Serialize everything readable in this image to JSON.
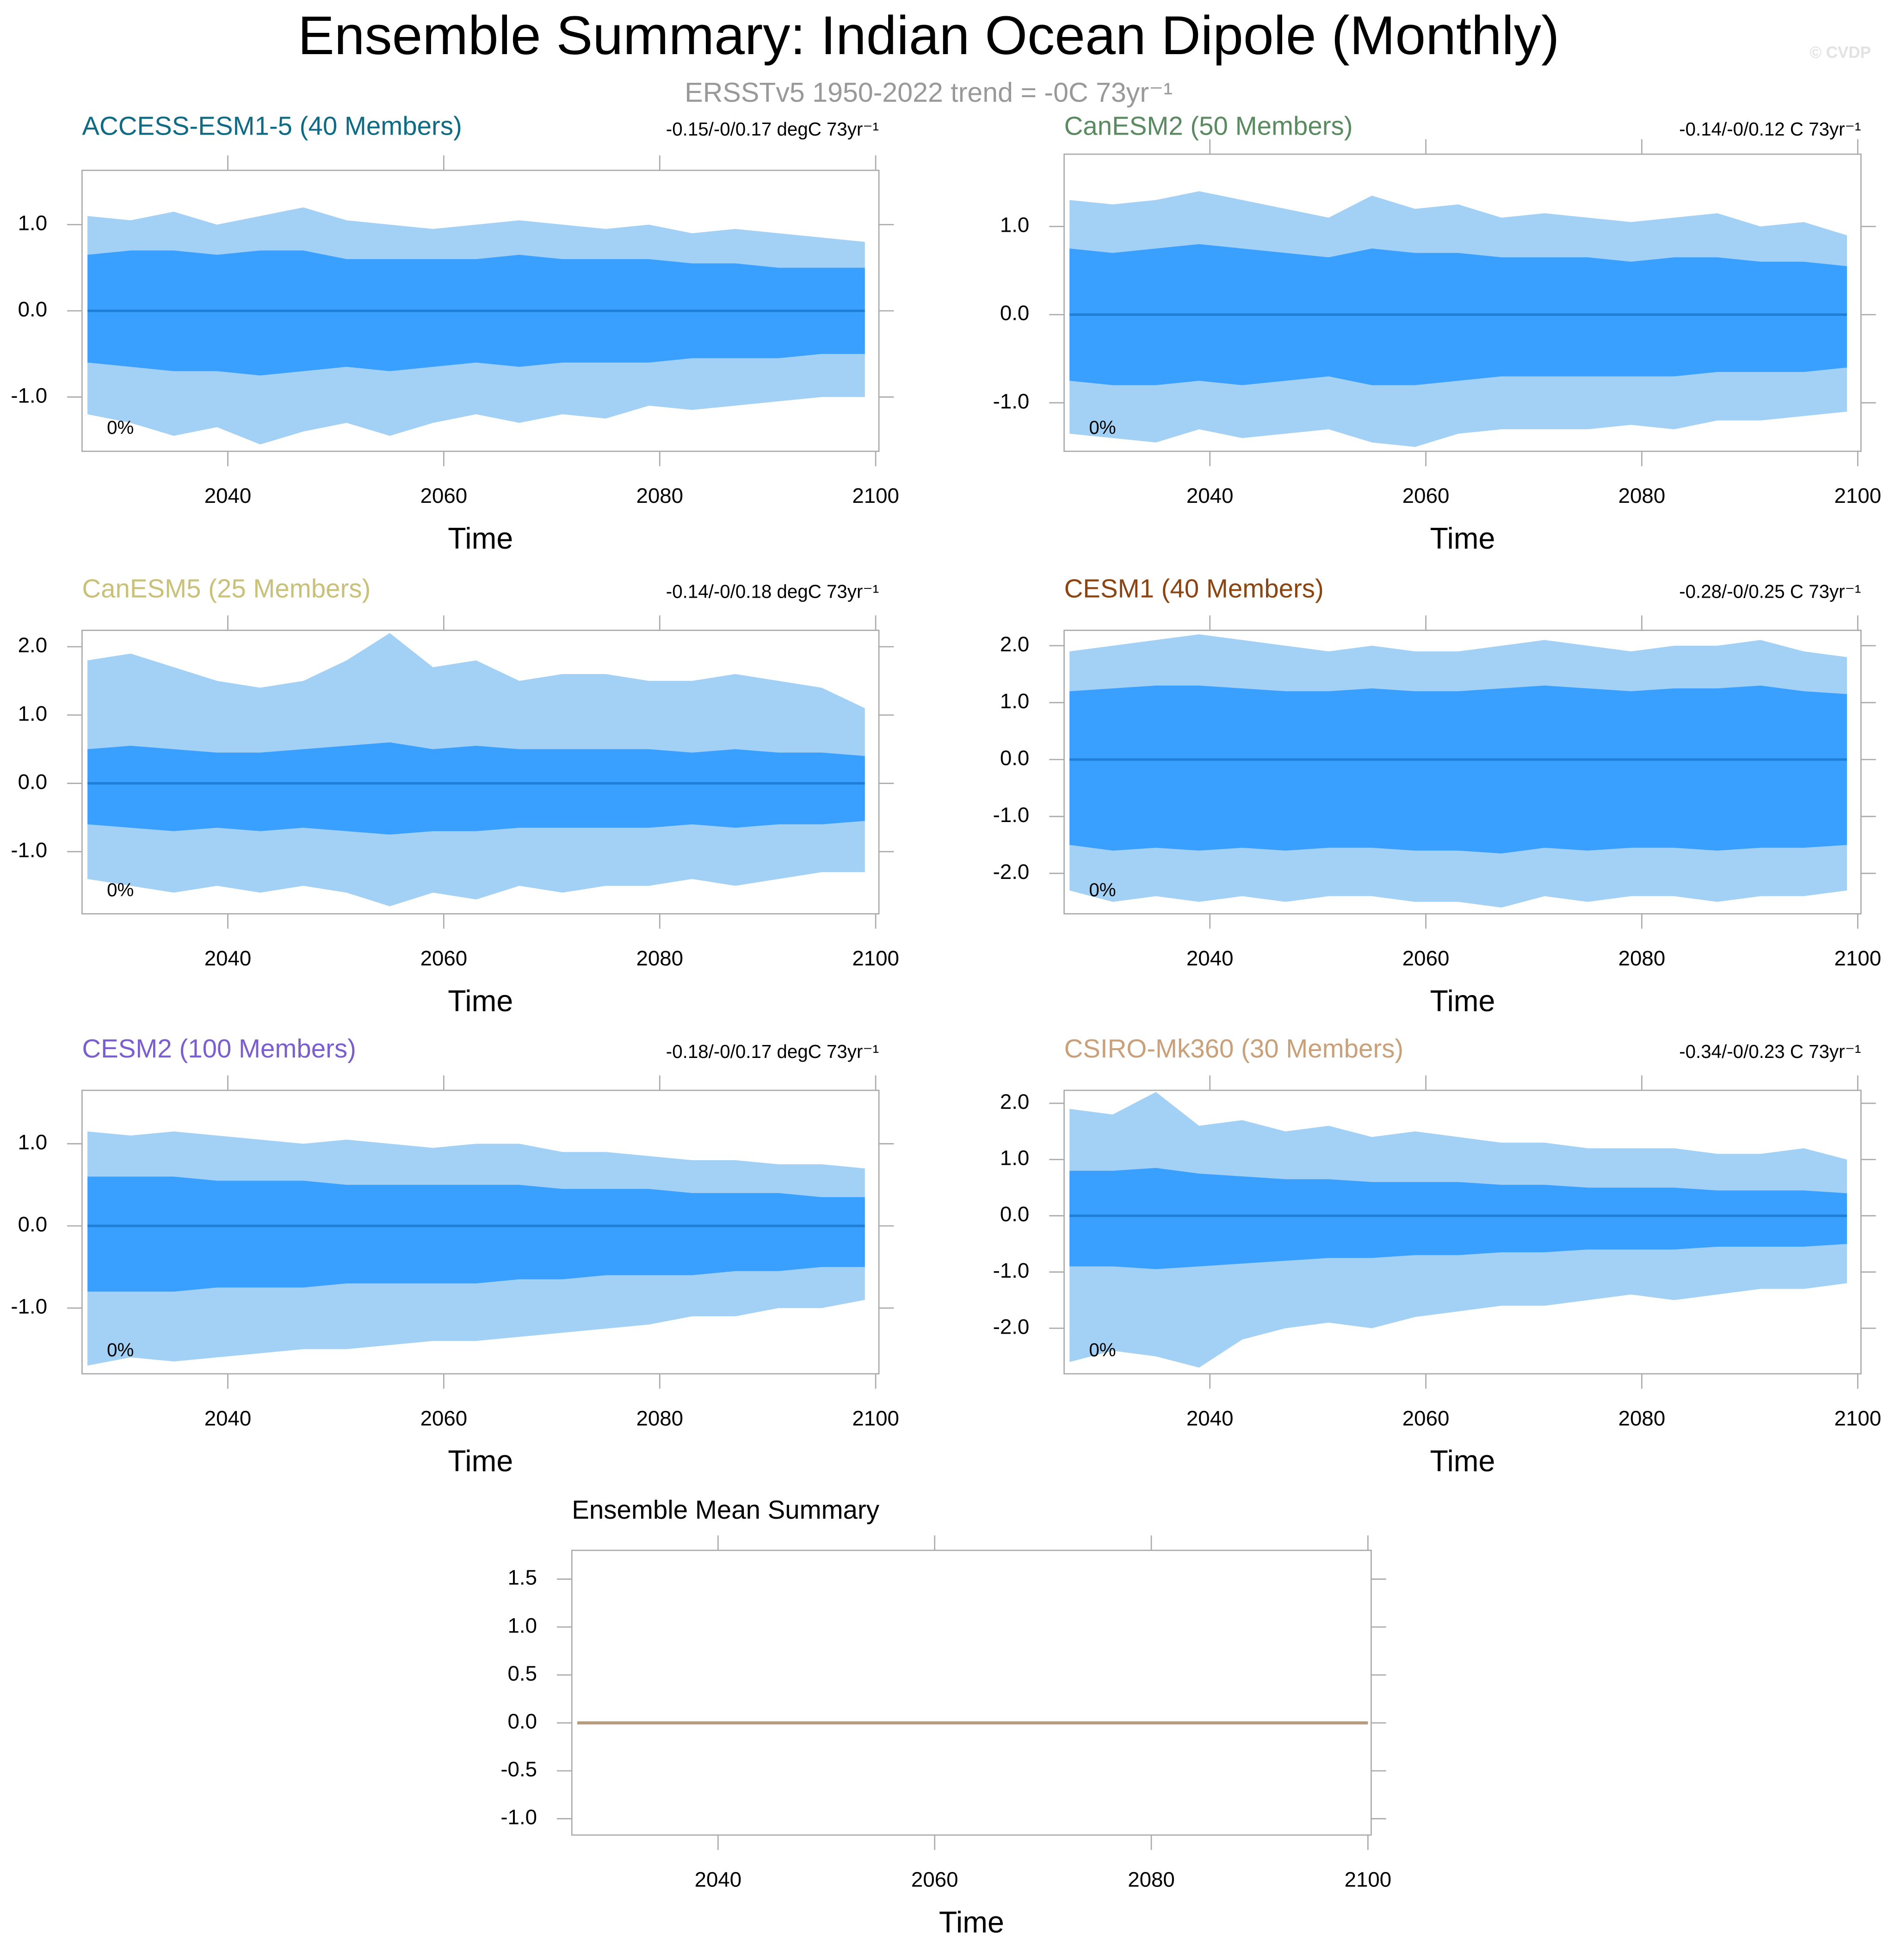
{
  "header": {
    "title": "Ensemble Summary: Indian Ocean Dipole (Monthly)",
    "subtitle": "ERSSTv5 1950-2022 trend = -0C 73yr⁻¹",
    "credit": "© CVDP"
  },
  "chart_data": [
    {
      "type": "area",
      "title": "ACCESS-ESM1-5 (40 Members)",
      "title_color": "#0f6b84",
      "subtitle": "-0.15/-0/0.17 degC 73yr⁻¹",
      "annotation": "0%",
      "xlabel": "Time",
      "x": [
        2027,
        2031,
        2035,
        2039,
        2043,
        2047,
        2051,
        2055,
        2059,
        2063,
        2067,
        2071,
        2075,
        2079,
        2083,
        2087,
        2091,
        2095,
        2099
      ],
      "series": [
        {
          "color": "#a3d0f5",
          "values": [
            1.1,
            1.05,
            1.15,
            1.0,
            1.1,
            1.2,
            1.05,
            1.0,
            0.95,
            1.0,
            1.05,
            1.0,
            0.95,
            1.0,
            0.9,
            0.95,
            0.9,
            0.85,
            0.8
          ]
        },
        {
          "color": "#a3d0f5",
          "values": [
            -1.2,
            -1.3,
            -1.45,
            -1.35,
            -1.55,
            -1.4,
            -1.3,
            -1.45,
            -1.3,
            -1.2,
            -1.3,
            -1.2,
            -1.25,
            -1.1,
            -1.15,
            -1.1,
            -1.05,
            -1.0,
            -1.0
          ]
        },
        {
          "color": "#3aa0ff",
          "values": [
            0.65,
            0.7,
            0.7,
            0.65,
            0.7,
            0.7,
            0.6,
            0.6,
            0.6,
            0.6,
            0.65,
            0.6,
            0.6,
            0.6,
            0.55,
            0.55,
            0.5,
            0.5,
            0.5
          ]
        },
        {
          "color": "#3aa0ff",
          "values": [
            -0.6,
            -0.65,
            -0.7,
            -0.7,
            -0.75,
            -0.7,
            -0.65,
            -0.7,
            -0.65,
            -0.6,
            -0.65,
            -0.6,
            -0.6,
            -0.6,
            -0.55,
            -0.55,
            -0.55,
            -0.5,
            -0.5
          ]
        },
        {
          "color": "#1f7fd6",
          "line": true,
          "values": [
            0,
            0,
            0,
            0,
            0,
            0,
            0,
            0,
            0,
            0,
            0,
            0,
            0,
            0,
            0,
            0,
            0,
            0,
            0
          ]
        }
      ],
      "xlim": [
        2026.5,
        2100.3
      ],
      "xticks": [
        2040,
        2060,
        2080,
        2100
      ],
      "ylim": [
        -1.63,
        1.63
      ],
      "yticks": [
        {
          "value": -1,
          "label": "-1.0"
        },
        {
          "value": 0,
          "label": "0.0"
        },
        {
          "value": 1,
          "label": "1.0"
        }
      ]
    },
    {
      "type": "area",
      "title": "CanESM2 (50 Members)",
      "title_color": "#5a8a60",
      "subtitle": "-0.14/-0/0.12 C 73yr⁻¹",
      "annotation": "0%",
      "xlabel": "Time",
      "x": [
        2027,
        2031,
        2035,
        2039,
        2043,
        2047,
        2051,
        2055,
        2059,
        2063,
        2067,
        2071,
        2075,
        2079,
        2083,
        2087,
        2091,
        2095,
        2099
      ],
      "series": [
        {
          "color": "#a3d0f5",
          "values": [
            1.3,
            1.25,
            1.3,
            1.4,
            1.3,
            1.2,
            1.1,
            1.35,
            1.2,
            1.25,
            1.1,
            1.15,
            1.1,
            1.05,
            1.1,
            1.15,
            1.0,
            1.05,
            0.9
          ]
        },
        {
          "color": "#a3d0f5",
          "values": [
            -1.35,
            -1.4,
            -1.45,
            -1.3,
            -1.4,
            -1.35,
            -1.3,
            -1.45,
            -1.5,
            -1.35,
            -1.3,
            -1.3,
            -1.3,
            -1.25,
            -1.3,
            -1.2,
            -1.2,
            -1.15,
            -1.1
          ]
        },
        {
          "color": "#3aa0ff",
          "values": [
            0.75,
            0.7,
            0.75,
            0.8,
            0.75,
            0.7,
            0.65,
            0.75,
            0.7,
            0.7,
            0.65,
            0.65,
            0.65,
            0.6,
            0.65,
            0.65,
            0.6,
            0.6,
            0.55
          ]
        },
        {
          "color": "#3aa0ff",
          "values": [
            -0.75,
            -0.8,
            -0.8,
            -0.75,
            -0.8,
            -0.75,
            -0.7,
            -0.8,
            -0.8,
            -0.75,
            -0.7,
            -0.7,
            -0.7,
            -0.7,
            -0.7,
            -0.65,
            -0.65,
            -0.65,
            -0.6
          ]
        },
        {
          "color": "#1f7fd6",
          "line": true,
          "values": [
            0,
            0,
            0,
            0,
            0,
            0,
            0,
            0,
            0,
            0,
            0,
            0,
            0,
            0,
            0,
            0,
            0,
            0,
            0
          ]
        }
      ],
      "xlim": [
        2026.5,
        2100.3
      ],
      "xticks": [
        2040,
        2060,
        2080,
        2100
      ],
      "ylim": [
        -1.55,
        1.82
      ],
      "yticks": [
        {
          "value": -1,
          "label": "-1.0"
        },
        {
          "value": 0,
          "label": "0.0"
        },
        {
          "value": 1,
          "label": "1.0"
        }
      ]
    },
    {
      "type": "area",
      "title": "CanESM5 (25 Members)",
      "title_color": "#c9c07a",
      "subtitle": "-0.14/-0/0.18 degC 73yr⁻¹",
      "annotation": "0%",
      "xlabel": "Time",
      "x": [
        2027,
        2031,
        2035,
        2039,
        2043,
        2047,
        2051,
        2055,
        2059,
        2063,
        2067,
        2071,
        2075,
        2079,
        2083,
        2087,
        2091,
        2095,
        2099
      ],
      "series": [
        {
          "color": "#a3d0f5",
          "values": [
            1.8,
            1.9,
            1.7,
            1.5,
            1.4,
            1.5,
            1.8,
            2.2,
            1.7,
            1.8,
            1.5,
            1.6,
            1.6,
            1.5,
            1.5,
            1.6,
            1.5,
            1.4,
            1.1
          ]
        },
        {
          "color": "#a3d0f5",
          "values": [
            -1.4,
            -1.5,
            -1.6,
            -1.5,
            -1.6,
            -1.5,
            -1.6,
            -1.8,
            -1.6,
            -1.7,
            -1.5,
            -1.6,
            -1.5,
            -1.5,
            -1.4,
            -1.5,
            -1.4,
            -1.3,
            -1.3
          ]
        },
        {
          "color": "#3aa0ff",
          "values": [
            0.5,
            0.55,
            0.5,
            0.45,
            0.45,
            0.5,
            0.55,
            0.6,
            0.5,
            0.55,
            0.5,
            0.5,
            0.5,
            0.5,
            0.45,
            0.5,
            0.45,
            0.45,
            0.4
          ]
        },
        {
          "color": "#3aa0ff",
          "values": [
            -0.6,
            -0.65,
            -0.7,
            -0.65,
            -0.7,
            -0.65,
            -0.7,
            -0.75,
            -0.7,
            -0.7,
            -0.65,
            -0.65,
            -0.65,
            -0.65,
            -0.6,
            -0.65,
            -0.6,
            -0.6,
            -0.55
          ]
        },
        {
          "color": "#1f7fd6",
          "line": true,
          "values": [
            0,
            0,
            0,
            0,
            0,
            0,
            0,
            0,
            0,
            0,
            0,
            0,
            0,
            0,
            0,
            0,
            0,
            0,
            0
          ]
        }
      ],
      "xlim": [
        2026.5,
        2100.3
      ],
      "xticks": [
        2040,
        2060,
        2080,
        2100
      ],
      "ylim": [
        -1.91,
        2.24
      ],
      "yticks": [
        {
          "value": -1,
          "label": "-1.0"
        },
        {
          "value": 0,
          "label": "0.0"
        },
        {
          "value": 1,
          "label": "1.0"
        },
        {
          "value": 2,
          "label": "2.0"
        }
      ]
    },
    {
      "type": "area",
      "title": "CESM1 (40 Members)",
      "title_color": "#8b4513",
      "subtitle": "-0.28/-0/0.25 C 73yr⁻¹",
      "annotation": "0%",
      "xlabel": "Time",
      "x": [
        2027,
        2031,
        2035,
        2039,
        2043,
        2047,
        2051,
        2055,
        2059,
        2063,
        2067,
        2071,
        2075,
        2079,
        2083,
        2087,
        2091,
        2095,
        2099
      ],
      "series": [
        {
          "color": "#a3d0f5",
          "values": [
            1.9,
            2.0,
            2.1,
            2.2,
            2.1,
            2.0,
            1.9,
            2.0,
            1.9,
            1.9,
            2.0,
            2.1,
            2.0,
            1.9,
            2.0,
            2.0,
            2.1,
            1.9,
            1.8
          ]
        },
        {
          "color": "#a3d0f5",
          "values": [
            -2.3,
            -2.5,
            -2.4,
            -2.5,
            -2.4,
            -2.5,
            -2.4,
            -2.4,
            -2.5,
            -2.5,
            -2.6,
            -2.4,
            -2.5,
            -2.4,
            -2.4,
            -2.5,
            -2.4,
            -2.4,
            -2.3
          ]
        },
        {
          "color": "#3aa0ff",
          "values": [
            1.2,
            1.25,
            1.3,
            1.3,
            1.25,
            1.2,
            1.2,
            1.25,
            1.2,
            1.2,
            1.25,
            1.3,
            1.25,
            1.2,
            1.25,
            1.25,
            1.3,
            1.2,
            1.15
          ]
        },
        {
          "color": "#3aa0ff",
          "values": [
            -1.5,
            -1.6,
            -1.55,
            -1.6,
            -1.55,
            -1.6,
            -1.55,
            -1.55,
            -1.6,
            -1.6,
            -1.65,
            -1.55,
            -1.6,
            -1.55,
            -1.55,
            -1.6,
            -1.55,
            -1.55,
            -1.5
          ]
        },
        {
          "color": "#1f7fd6",
          "line": true,
          "values": [
            0,
            0,
            0,
            0,
            0,
            0,
            0,
            0,
            0,
            0,
            0,
            0,
            0,
            0,
            0,
            0,
            0,
            0,
            0
          ]
        }
      ],
      "xlim": [
        2026.5,
        2100.3
      ],
      "xticks": [
        2040,
        2060,
        2080,
        2100
      ],
      "ylim": [
        -2.71,
        2.27
      ],
      "yticks": [
        {
          "value": -2,
          "label": "-2.0"
        },
        {
          "value": -1,
          "label": "-1.0"
        },
        {
          "value": 0,
          "label": "0.0"
        },
        {
          "value": 1,
          "label": "1.0"
        },
        {
          "value": 2,
          "label": "2.0"
        }
      ]
    },
    {
      "type": "area",
      "title": "CESM2 (100 Members)",
      "title_color": "#7b5fcf",
      "subtitle": "-0.18/-0/0.17 degC 73yr⁻¹",
      "annotation": "0%",
      "xlabel": "Time",
      "x": [
        2027,
        2031,
        2035,
        2039,
        2043,
        2047,
        2051,
        2055,
        2059,
        2063,
        2067,
        2071,
        2075,
        2079,
        2083,
        2087,
        2091,
        2095,
        2099
      ],
      "series": [
        {
          "color": "#a3d0f5",
          "values": [
            1.15,
            1.1,
            1.15,
            1.1,
            1.05,
            1.0,
            1.05,
            1.0,
            0.95,
            1.0,
            1.0,
            0.9,
            0.9,
            0.85,
            0.8,
            0.8,
            0.75,
            0.75,
            0.7
          ]
        },
        {
          "color": "#a3d0f5",
          "values": [
            -1.7,
            -1.6,
            -1.65,
            -1.6,
            -1.55,
            -1.5,
            -1.5,
            -1.45,
            -1.4,
            -1.4,
            -1.35,
            -1.3,
            -1.25,
            -1.2,
            -1.1,
            -1.1,
            -1.0,
            -1.0,
            -0.9
          ]
        },
        {
          "color": "#3aa0ff",
          "values": [
            0.6,
            0.6,
            0.6,
            0.55,
            0.55,
            0.55,
            0.5,
            0.5,
            0.5,
            0.5,
            0.5,
            0.45,
            0.45,
            0.45,
            0.4,
            0.4,
            0.4,
            0.35,
            0.35
          ]
        },
        {
          "color": "#3aa0ff",
          "values": [
            -0.8,
            -0.8,
            -0.8,
            -0.75,
            -0.75,
            -0.75,
            -0.7,
            -0.7,
            -0.7,
            -0.7,
            -0.65,
            -0.65,
            -0.6,
            -0.6,
            -0.6,
            -0.55,
            -0.55,
            -0.5,
            -0.5
          ]
        },
        {
          "color": "#1f7fd6",
          "line": true,
          "values": [
            0,
            0,
            0,
            0,
            0,
            0,
            0,
            0,
            0,
            0,
            0,
            0,
            0,
            0,
            0,
            0,
            0,
            0,
            0
          ]
        }
      ],
      "xlim": [
        2026.5,
        2100.3
      ],
      "xticks": [
        2040,
        2060,
        2080,
        2100
      ],
      "ylim": [
        -1.8,
        1.65
      ],
      "yticks": [
        {
          "value": -1,
          "label": "-1.0"
        },
        {
          "value": 0,
          "label": "0.0"
        },
        {
          "value": 1,
          "label": "1.0"
        }
      ]
    },
    {
      "type": "area",
      "title": "CSIRO-Mk360 (30 Members)",
      "title_color": "#c8a07a",
      "subtitle": "-0.34/-0/0.23 C 73yr⁻¹",
      "annotation": "0%",
      "xlabel": "Time",
      "x": [
        2027,
        2031,
        2035,
        2039,
        2043,
        2047,
        2051,
        2055,
        2059,
        2063,
        2067,
        2071,
        2075,
        2079,
        2083,
        2087,
        2091,
        2095,
        2099
      ],
      "series": [
        {
          "color": "#a3d0f5",
          "values": [
            1.9,
            1.8,
            2.2,
            1.6,
            1.7,
            1.5,
            1.6,
            1.4,
            1.5,
            1.4,
            1.3,
            1.3,
            1.2,
            1.2,
            1.2,
            1.1,
            1.1,
            1.2,
            1.0
          ]
        },
        {
          "color": "#a3d0f5",
          "values": [
            -2.6,
            -2.4,
            -2.5,
            -2.7,
            -2.2,
            -2.0,
            -1.9,
            -2.0,
            -1.8,
            -1.7,
            -1.6,
            -1.6,
            -1.5,
            -1.4,
            -1.5,
            -1.4,
            -1.3,
            -1.3,
            -1.2
          ]
        },
        {
          "color": "#3aa0ff",
          "values": [
            0.8,
            0.8,
            0.85,
            0.75,
            0.7,
            0.65,
            0.65,
            0.6,
            0.6,
            0.6,
            0.55,
            0.55,
            0.5,
            0.5,
            0.5,
            0.45,
            0.45,
            0.45,
            0.4
          ]
        },
        {
          "color": "#3aa0ff",
          "values": [
            -0.9,
            -0.9,
            -0.95,
            -0.9,
            -0.85,
            -0.8,
            -0.75,
            -0.75,
            -0.7,
            -0.7,
            -0.65,
            -0.65,
            -0.6,
            -0.6,
            -0.6,
            -0.55,
            -0.55,
            -0.55,
            -0.5
          ]
        },
        {
          "color": "#1f7fd6",
          "line": true,
          "values": [
            0,
            0,
            0,
            0,
            0,
            0,
            0,
            0,
            0,
            0,
            0,
            0,
            0,
            0,
            0,
            0,
            0,
            0,
            0
          ]
        }
      ],
      "xlim": [
        2026.5,
        2100.3
      ],
      "xticks": [
        2040,
        2060,
        2080,
        2100
      ],
      "ylim": [
        -2.81,
        2.23
      ],
      "yticks": [
        {
          "value": -2,
          "label": "-2.0"
        },
        {
          "value": -1,
          "label": "-1.0"
        },
        {
          "value": 0,
          "label": "0.0"
        },
        {
          "value": 1,
          "label": "1.0"
        },
        {
          "value": 2,
          "label": "2.0"
        }
      ]
    },
    {
      "type": "line",
      "title": "Ensemble Mean Summary",
      "title_color": "#000000",
      "xlabel": "Time",
      "x": [
        2027,
        2100
      ],
      "series": [
        {
          "color": "#b89a7e",
          "values": [
            0,
            0
          ]
        }
      ],
      "xlim": [
        2026.5,
        2100.3
      ],
      "xticks": [
        2040,
        2060,
        2080,
        2100
      ],
      "ylim": [
        -1.17,
        1.8
      ],
      "yticks": [
        {
          "value": -1,
          "label": "-1.0"
        },
        {
          "value": -0.5,
          "label": "-0.5"
        },
        {
          "value": 0,
          "label": "0.0"
        },
        {
          "value": 0.5,
          "label": "0.5"
        },
        {
          "value": 1,
          "label": "1.0"
        },
        {
          "value": 1.5,
          "label": "1.5"
        }
      ]
    }
  ]
}
